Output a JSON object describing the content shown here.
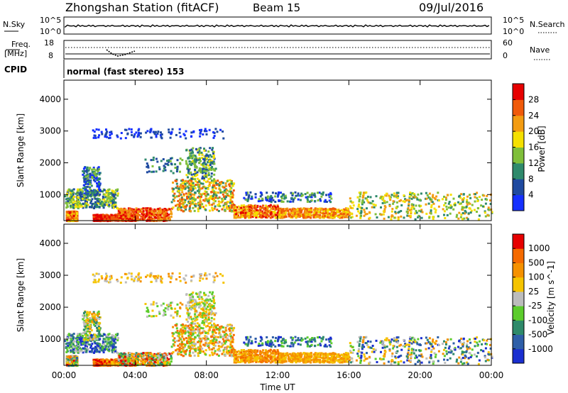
{
  "header": {
    "title": "Zhongshan Station (fitACF)",
    "beam": "Beam 15",
    "date": "09/Jul/2016"
  },
  "status_panels": {
    "nsky_label": "N.Sky",
    "nsearch_label": "N.Search",
    "nsky_ticks": [
      "10^5",
      "10^0"
    ],
    "nsearch_ticks": [
      "10^5",
      "10^0"
    ],
    "freq_label_line1": "Freq.",
    "freq_label_line2": "[MHz]",
    "freq_ticks": [
      "18",
      "8"
    ],
    "nave_label": "Nave",
    "nave_ticks": [
      "60",
      "0"
    ],
    "cpid_label": "CPID",
    "cpid_text": "normal (fast stereo) 153"
  },
  "chart_data": [
    {
      "type": "heatmap",
      "title": "",
      "xlabel": "",
      "ylabel": "Slant Range [km]",
      "x_ticks": [
        "00:00",
        "04:00",
        "08:00",
        "12:00",
        "16:00",
        "20:00",
        "00:00"
      ],
      "ylim": [
        180,
        4600
      ],
      "y_ticks": [
        1000,
        2000,
        3000,
        4000
      ],
      "colorbar": {
        "label": "Power [dB]",
        "ticks": [
          "4",
          "8",
          "12",
          "16",
          "20",
          "24",
          "28"
        ],
        "colors": [
          "#1530ff",
          "#1f4aa0",
          "#2f8a6c",
          "#7fbf3a",
          "#f5e000",
          "#f39c12",
          "#f05a0a",
          "#e60000"
        ]
      }
    },
    {
      "type": "heatmap",
      "title": "",
      "xlabel": "Time UT",
      "ylabel": "Slant Range [km]",
      "x_ticks": [
        "00:00",
        "04:00",
        "08:00",
        "12:00",
        "16:00",
        "20:00",
        "00:00"
      ],
      "ylim": [
        180,
        4600
      ],
      "y_ticks": [
        1000,
        2000,
        3000,
        4000
      ],
      "colorbar": {
        "label": "Velocity [m s^-1]",
        "ticks": [
          "1000",
          "500",
          "100",
          "25",
          "-25",
          "-100",
          "-500",
          "-1000"
        ],
        "colors": [
          "#1a2fd0",
          "#2e5fa8",
          "#2e8a6a",
          "#5ccc2c",
          "#bcbcbc",
          "#f5c400",
          "#f59100",
          "#f56a00",
          "#e60000"
        ]
      }
    }
  ]
}
